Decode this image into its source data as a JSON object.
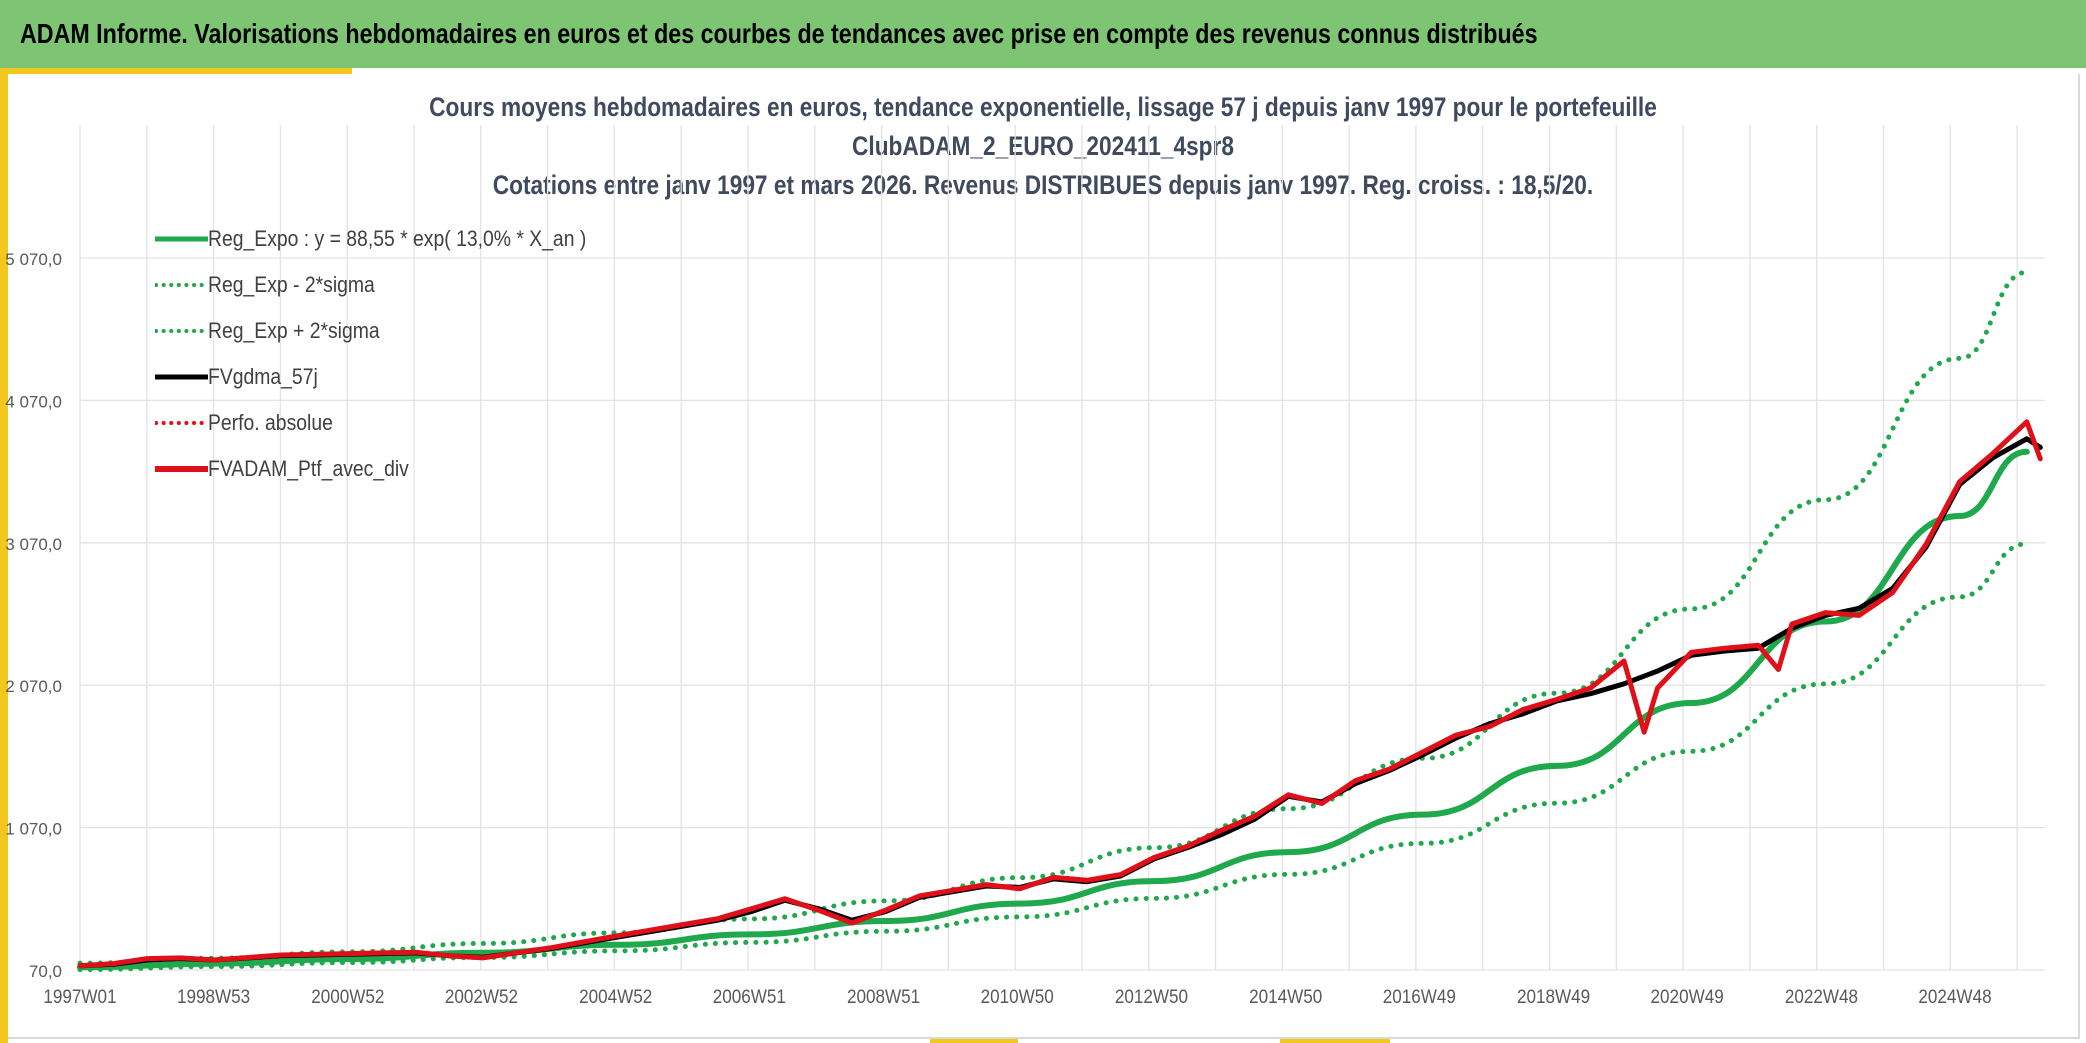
{
  "header": {
    "title": "ADAM Informe. Valorisations hebdomadaires en euros et des courbes de tendances avec prise en compte des revenus connus distribués"
  },
  "colors": {
    "banner": "#7dc573",
    "accent": "#f2c81e",
    "reg_expo": "#1fa84c",
    "fv_gdma": "#000000",
    "fv_adam": "#e0101a"
  },
  "chart_data": {
    "type": "line",
    "title_lines": [
      "Cours moyens hebdomadaires en euros, tendance exponentielle, lissage 57 j depuis janv 1997 pour le portefeuille",
      "ClubADAM_2_EURO_202411_4spr8",
      "Cotations entre janv 1997 et mars 2026. Revenus DISTRIBUES depuis janv 1997. Reg. croiss. : 18,5/20."
    ],
    "xlabel": "",
    "ylabel": "",
    "x_range": [
      1997.0,
      2026.2
    ],
    "ylim": [
      70,
      5770
    ],
    "y_ticks": [
      70,
      1070,
      2070,
      3070,
      4070,
      5070
    ],
    "y_tick_labels": [
      "70,0",
      "1 070,0",
      "2 070,0",
      "3 070,0",
      "4 070,0",
      "5 070,0"
    ],
    "x_ticks": [
      1997.0,
      1998.99,
      2000.99,
      2002.98,
      2004.98,
      2006.97,
      2008.97,
      2010.96,
      2012.96,
      2014.96,
      2016.95,
      2018.95,
      2020.94,
      2022.94,
      2024.93
    ],
    "x_tick_labels": [
      "1997W01",
      "1998W53",
      "2000W52",
      "2002W52",
      "2004W52",
      "2006W51",
      "2008W51",
      "2010W50",
      "2012W50",
      "2014W50",
      "2016W49",
      "2018W49",
      "2020W49",
      "2022W48",
      "2024W48"
    ],
    "grid": true,
    "legend_position": "top-left",
    "legend": [
      {
        "label": "Reg_Expo : y = 88,55 * exp( 13,0% *  X_an )",
        "style": "solid",
        "color": "#1fa84c"
      },
      {
        "label": "Reg_Exp - 2*sigma",
        "style": "dotted",
        "color": "#1fa84c"
      },
      {
        "label": "Reg_Exp + 2*sigma",
        "style": "dotted",
        "color": "#1fa84c"
      },
      {
        "label": "FVgdma_57j",
        "style": "solid",
        "color": "#000000"
      },
      {
        "label": "Perfo. absolue",
        "style": "dotted",
        "color": "#e0101a"
      },
      {
        "label": "FVADAM_Ptf_avec_div",
        "style": "solid",
        "color": "#e0101a"
      }
    ],
    "series": [
      {
        "name": "Reg_Expo : y = 88,55 * exp( 13,0% *  X_an )",
        "x": [
          1997.0,
          1999.0,
          2001.0,
          2003.0,
          2005.0,
          2007.0,
          2009.0,
          2011.0,
          2013.0,
          2015.0,
          2017.0,
          2019.0,
          2021.0,
          2023.0,
          2025.0,
          2026.0
        ],
        "y": [
          89,
          115,
          147,
          191,
          247,
          320,
          414,
          536,
          694,
          898,
          1161,
          1503,
          1945,
          2517,
          3258,
          3709
        ]
      },
      {
        "name": "Reg_Exp - 2*sigma",
        "x": [
          1997.0,
          1999.0,
          2001.0,
          2003.0,
          2005.0,
          2007.0,
          2009.0,
          2011.0,
          2013.0,
          2015.0,
          2017.0,
          2019.0,
          2021.0,
          2023.0,
          2025.0,
          2026.0
        ],
        "y": [
          73,
          94,
          122,
          158,
          204,
          264,
          342,
          443,
          573,
          741,
          959,
          1241,
          1606,
          2079,
          2690,
          3063
        ]
      },
      {
        "name": "Reg_Exp + 2*sigma",
        "x": [
          1997.0,
          1999.0,
          2001.0,
          2003.0,
          2005.0,
          2007.0,
          2009.0,
          2011.0,
          2013.0,
          2015.0,
          2017.0,
          2019.0,
          2021.0,
          2023.0,
          2025.0,
          2026.0
        ],
        "y": [
          118,
          153,
          198,
          256,
          331,
          429,
          555,
          718,
          929,
          1203,
          1556,
          2014,
          2606,
          3373,
          4365,
          4970
        ]
      },
      {
        "name": "FVgdma_57j",
        "x": [
          1997.0,
          1997.5,
          1998.0,
          1998.5,
          1999.0,
          2000.0,
          2001.0,
          2002.0,
          2002.5,
          2003.0,
          2004.0,
          2005.0,
          2006.0,
          2006.5,
          2007.0,
          2007.5,
          2008.0,
          2008.5,
          2009.0,
          2009.5,
          2010.0,
          2010.5,
          2011.0,
          2011.5,
          2012.0,
          2012.5,
          2013.0,
          2013.5,
          2014.0,
          2014.5,
          2015.0,
          2015.5,
          2016.0,
          2016.5,
          2017.0,
          2017.5,
          2018.0,
          2018.5,
          2019.0,
          2019.5,
          2020.0,
          2020.5,
          2021.0,
          2021.5,
          2022.0,
          2022.5,
          2023.0,
          2023.5,
          2024.0,
          2024.5,
          2025.0,
          2025.5,
          2026.0,
          2026.2
        ],
        "y": [
          100,
          110,
          140,
          150,
          140,
          170,
          180,
          190,
          170,
          160,
          220,
          300,
          380,
          420,
          480,
          560,
          500,
          420,
          480,
          580,
          620,
          660,
          650,
          710,
          690,
          730,
          850,
          930,
          1020,
          1130,
          1290,
          1250,
          1380,
          1470,
          1580,
          1700,
          1800,
          1870,
          1960,
          2010,
          2080,
          2170,
          2280,
          2310,
          2330,
          2470,
          2560,
          2610,
          2750,
          3040,
          3480,
          3670,
          3800,
          3740
        ]
      },
      {
        "name": "FVADAM_Ptf_avec_div",
        "x": [
          1997.0,
          1997.5,
          1998.0,
          1998.5,
          1999.0,
          2000.0,
          2001.0,
          2002.0,
          2002.5,
          2003.0,
          2004.0,
          2005.0,
          2006.0,
          2006.5,
          2007.0,
          2007.5,
          2008.0,
          2008.5,
          2009.0,
          2009.5,
          2010.0,
          2010.5,
          2011.0,
          2011.5,
          2012.0,
          2012.5,
          2013.0,
          2013.5,
          2014.0,
          2014.5,
          2015.0,
          2015.5,
          2016.0,
          2016.5,
          2017.0,
          2017.5,
          2018.0,
          2018.5,
          2019.0,
          2019.5,
          2020.0,
          2020.3,
          2020.5,
          2021.0,
          2021.5,
          2022.0,
          2022.3,
          2022.5,
          2023.0,
          2023.5,
          2024.0,
          2024.5,
          2025.0,
          2025.5,
          2026.0,
          2026.2
        ],
        "y": [
          100,
          115,
          150,
          155,
          140,
          175,
          185,
          195,
          170,
          155,
          225,
          310,
          390,
          430,
          500,
          570,
          490,
          400,
          490,
          590,
          630,
          670,
          640,
          720,
          700,
          740,
          860,
          940,
          1050,
          1150,
          1300,
          1240,
          1400,
          1480,
          1600,
          1720,
          1780,
          1900,
          1970,
          2050,
          2240,
          1740,
          2050,
          2300,
          2330,
          2350,
          2180,
          2500,
          2580,
          2560,
          2720,
          3060,
          3500,
          3700,
          3920,
          3660
        ]
      }
    ]
  }
}
